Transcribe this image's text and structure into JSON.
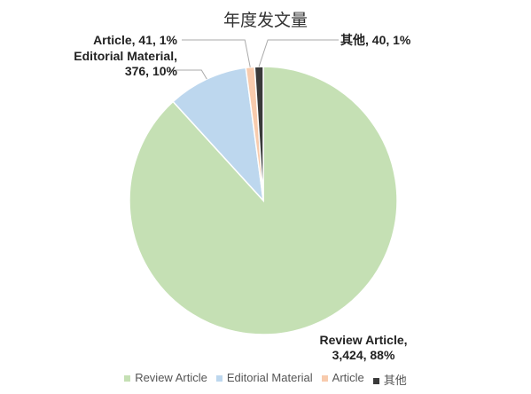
{
  "chart_data": {
    "type": "pie",
    "title": "年度发文量",
    "categories": [
      "Review Article",
      "Editorial Material",
      "Article",
      "其他"
    ],
    "values": [
      3424,
      376,
      41,
      40
    ],
    "value_labels": [
      "Review Article, 3,424, 88%",
      "Editorial Material, 376, 10%",
      "Article, 41, 1%",
      "其他, 40, 1%"
    ],
    "colors": [
      "#c5e0b4",
      "#bdd7ee",
      "#f8cbad",
      "#3a3a3a"
    ],
    "legend": "bottom"
  }
}
